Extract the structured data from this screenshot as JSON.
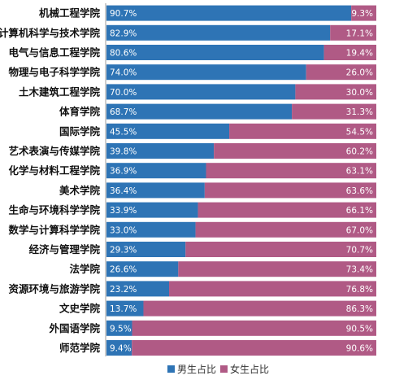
{
  "chart_data": {
    "type": "bar",
    "orientation": "horizontal",
    "stacked": true,
    "percent_stacked": true,
    "categories": [
      "机械工程学院",
      "计算机科学与技术学院",
      "电气与信息工程学院",
      "物理与电子科学学院",
      "土木建筑工程学院",
      "体育学院",
      "国际学院",
      "艺术表演与传媒学院",
      "化学与材料工程学院",
      "美术学院",
      "生命与环境科学学院",
      "数学与计算科学学院",
      "经济与管理学院",
      "法学院",
      "资源环境与旅游学院",
      "文史学院",
      "外国语学院",
      "师范学院"
    ],
    "series": [
      {
        "name": "男生占比",
        "color": "#2e74b5",
        "values": [
          90.7,
          82.9,
          80.6,
          74.0,
          70.0,
          68.7,
          45.5,
          39.8,
          36.9,
          36.4,
          33.9,
          33.0,
          29.3,
          26.6,
          23.2,
          13.7,
          9.5,
          9.4
        ],
        "labels": [
          "90.7%",
          "82.9%",
          "80.6%",
          "74.0%",
          "70.0%",
          "68.7%",
          "45.5%",
          "39.8%",
          "36.9%",
          "36.4%",
          "33.9%",
          "33.0%",
          "29.3%",
          "26.6%",
          "23.2%",
          "13.7%",
          "9.5%",
          "9.4%"
        ]
      },
      {
        "name": "女生占比",
        "color": "#b05a85",
        "values": [
          9.3,
          17.1,
          19.4,
          26.0,
          30.0,
          31.3,
          54.5,
          60.2,
          63.1,
          63.6,
          66.1,
          67.0,
          70.7,
          73.4,
          76.8,
          86.3,
          90.5,
          90.6
        ],
        "labels": [
          "9.3%",
          "17.1%",
          "19.4%",
          "26.0%",
          "30.0%",
          "31.3%",
          "54.5%",
          "60.2%",
          "63.1%",
          "63.6%",
          "66.1%",
          "67.0%",
          "70.7%",
          "73.4%",
          "76.8%",
          "86.3%",
          "90.5%",
          "90.6%"
        ]
      }
    ],
    "xlim": [
      0,
      100
    ],
    "grid": false,
    "legend_position": "bottom-center"
  }
}
